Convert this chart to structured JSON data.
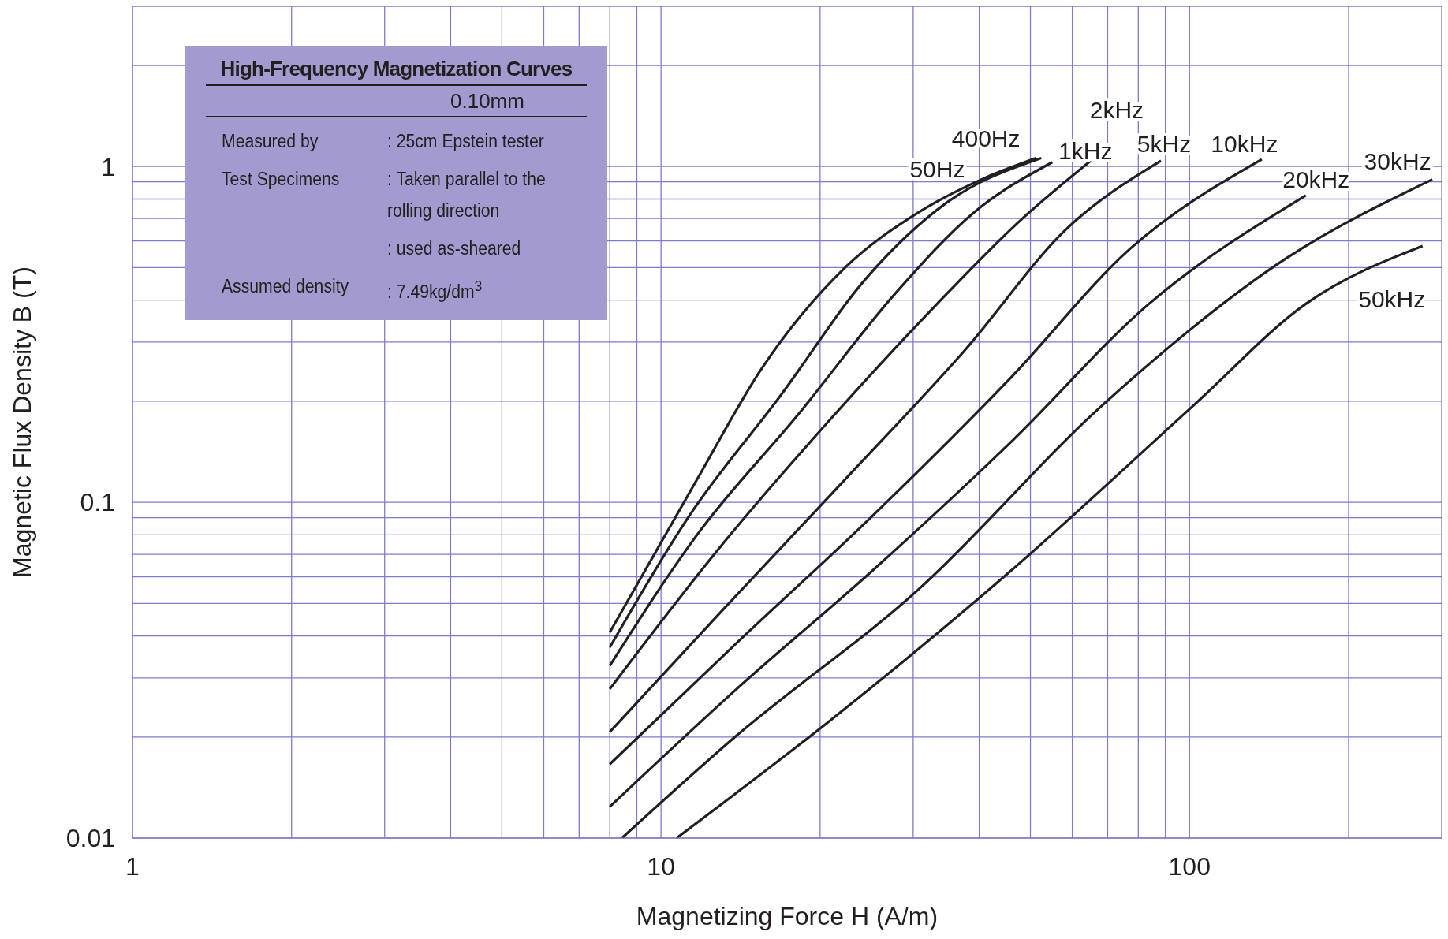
{
  "chart_data": {
    "type": "line",
    "title": "High-Frequency Magnetization Curves",
    "xlabel": "Magnetizing Force H (A/m)",
    "ylabel": "Magnetic Flux Density B (T)",
    "annotations": [
      "0.10mm",
      "Measured by",
      ": 25cm Epstein tester",
      "Test Specimens",
      ": Taken parallel to the rolling direction",
      ": used as-sheared",
      "Assumed density",
      ": 7.49kg/dm$^{3}$"
    ],
    "log": "xy",
    "grid": true,
    "legend": false,
    "marker": "none",
    "line_style": "solid",
    "xlim": [
      1,
      300
    ],
    "ylim": [
      0.01,
      3
    ],
    "xticks": [
      1,
      {
        "value": 2,
        "label": null
      },
      {
        "value": 3,
        "label": null
      },
      {
        "value": 4,
        "label": null
      },
      {
        "value": 5,
        "label": null
      },
      {
        "value": 6,
        "label": null
      },
      {
        "value": 7,
        "label": null
      },
      {
        "value": 8,
        "label": null
      },
      {
        "value": 9,
        "label": null
      },
      10,
      {
        "value": 20,
        "label": null
      },
      {
        "value": 30,
        "label": null
      },
      {
        "value": 40,
        "label": null
      },
      {
        "value": 50,
        "label": null
      },
      {
        "value": 60,
        "label": null
      },
      {
        "value": 70,
        "label": null
      },
      {
        "value": 80,
        "label": null
      },
      {
        "value": 90,
        "label": null
      },
      100,
      {
        "value": 200,
        "label": null
      },
      {
        "value": 300,
        "label": null
      }
    ],
    "yticks": [
      0.01,
      {
        "value": 0.02,
        "label": null
      },
      {
        "value": 0.03,
        "label": null
      },
      {
        "value": 0.04,
        "label": null
      },
      {
        "value": 0.05,
        "label": null
      },
      {
        "value": 0.06,
        "label": null
      },
      {
        "value": 0.07,
        "label": null
      },
      {
        "value": 0.08,
        "label": null
      },
      {
        "value": 0.09,
        "label": null
      },
      0.1,
      {
        "value": 0.2,
        "label": null
      },
      {
        "value": 0.3,
        "label": null
      },
      {
        "value": 0.4,
        "label": null
      },
      {
        "value": 0.5,
        "label": null
      },
      {
        "value": 0.6,
        "label": null
      },
      {
        "value": 0.7,
        "label": null
      },
      {
        "value": 0.8,
        "label": null
      },
      {
        "value": 0.9,
        "label": null
      },
      1,
      {
        "value": 2,
        "label": null
      },
      {
        "value": 3,
        "label": null
      }
    ],
    "series": [
      {
        "name": "50Hz",
        "color": "#231f20",
        "x": [
          8,
          11.7,
          15.5,
          22.3,
          30.7,
          40.7,
          51.2
        ],
        "values": [
          0.041,
          0.117,
          0.25,
          0.5,
          0.73,
          0.92,
          1.06
        ]
      },
      {
        "name": "400Hz",
        "color": "#231f20",
        "x": [
          8,
          11.3,
          16.8,
          24.6,
          34.7,
          52.4
        ],
        "values": [
          0.037,
          0.091,
          0.207,
          0.47,
          0.78,
          1.06
        ]
      },
      {
        "name": "1kHz",
        "color": "#231f20",
        "x": [
          8,
          11.7,
          18.2,
          27.8,
          39.1,
          55
        ],
        "values": [
          0.0326,
          0.08,
          0.183,
          0.42,
          0.73,
          1.03
        ]
      },
      {
        "name": "2kHz",
        "color": "#231f20",
        "x": [
          8,
          12.7,
          20.6,
          33.3,
          47.8,
          65
        ],
        "values": [
          0.0278,
          0.071,
          0.172,
          0.39,
          0.69,
          1.04
        ]
      },
      {
        "name": "5kHz",
        "color": "#231f20",
        "x": [
          8,
          13.2,
          22.3,
          37.6,
          58.4,
          88.3
        ],
        "values": [
          0.0207,
          0.0485,
          0.117,
          0.284,
          0.65,
          1.04
        ]
      },
      {
        "name": "10kHz",
        "color": "#231f20",
        "x": [
          8,
          13.8,
          25.1,
          45.9,
          77.3,
          137
        ],
        "values": [
          0.0166,
          0.0377,
          0.091,
          0.235,
          0.57,
          1.05
        ]
      },
      {
        "name": "20kHz",
        "color": "#231f20",
        "x": [
          8,
          13.8,
          25.1,
          45.9,
          83.8,
          166
        ],
        "values": [
          0.0124,
          0.0275,
          0.0625,
          0.151,
          0.39,
          0.82
        ]
      },
      {
        "name": "30kHz",
        "color": "#231f20",
        "x": [
          8.43,
          13.8,
          30.7,
          68.5,
          153,
          288
        ],
        "values": [
          0.01,
          0.02,
          0.055,
          0.195,
          0.535,
          0.915
        ]
      },
      {
        "name": "50kHz",
        "color": "#231f20",
        "x": [
          10.7,
          20.6,
          45.9,
          102,
          166,
          276
        ],
        "values": [
          0.01,
          0.022,
          0.0625,
          0.195,
          0.39,
          0.58
        ]
      }
    ]
  }
}
